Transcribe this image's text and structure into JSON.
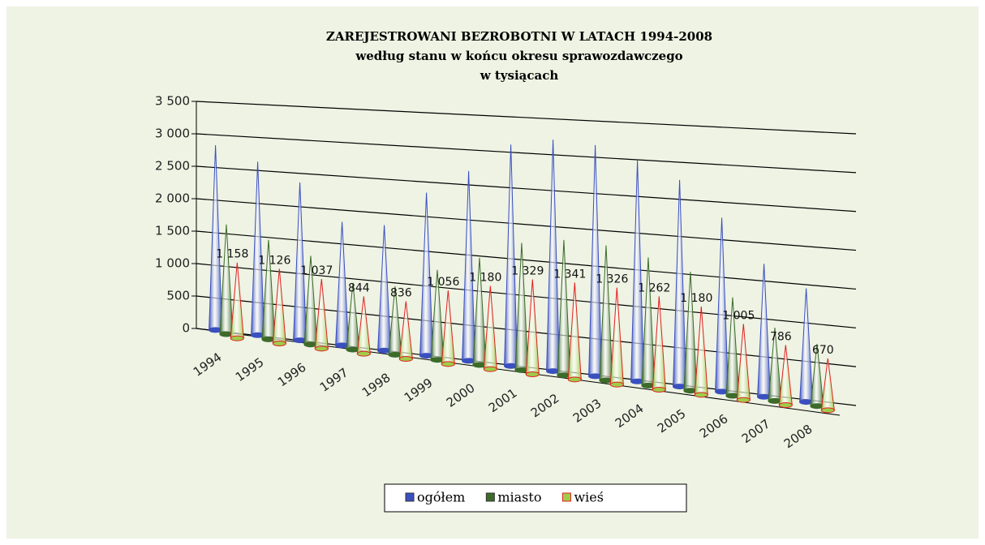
{
  "chart_data": {
    "type": "cone3d",
    "title": "ZAREJESTROWANI BEZROBOTNI W LATACH 1994-2008",
    "subtitle": [
      "według stanu w końcu okresu sprawozdawczego",
      "w tysiącach"
    ],
    "categories": [
      "1994",
      "1995",
      "1996",
      "1997",
      "1998",
      "1999",
      "2000",
      "2001",
      "2002",
      "2003",
      "2004",
      "2005",
      "2006",
      "2007",
      "2008"
    ],
    "series": [
      {
        "name": "ogółem",
        "color": "#3a4fc0",
        "values": [
          2838,
          2629,
          2360,
          1826,
          1831,
          2350,
          2702,
          3115,
          3217,
          3176,
          2999,
          2773,
          2309,
          1746,
          1474
        ]
      },
      {
        "name": "miasto",
        "color": "#3c6b2a",
        "values": [
          1680,
          1503,
          1323,
          982,
          995,
          1294,
          1522,
          1786,
          1876,
          1850,
          1737,
          1593,
          1304,
          960,
          804
        ]
      },
      {
        "name": "wieś",
        "color": "#9fcc4a",
        "stroke": "#e02020",
        "values": [
          1158,
          1126,
          1037,
          844,
          836,
          1056,
          1180,
          1329,
          1341,
          1326,
          1262,
          1180,
          1005,
          786,
          670
        ],
        "value_labels": [
          "1 158",
          "1 126",
          "1 037",
          "844",
          "836",
          "1 056",
          "1 180",
          "1 329",
          "1 341",
          "1 326",
          "1 262",
          "1 180",
          "1 005",
          "786",
          "670"
        ]
      }
    ],
    "ylim": [
      0,
      3500
    ],
    "yticks": [
      0,
      500,
      {
        "value": 1000,
        "label": "1 000"
      },
      {
        "value": 1500,
        "label": "1 500"
      },
      {
        "value": 2000,
        "label": "2 000"
      },
      {
        "value": 2500,
        "label": "2 500"
      },
      {
        "value": 3000,
        "label": "3 000"
      },
      {
        "value": 3500,
        "label": "3 500"
      }
    ],
    "grid": true,
    "legend": "bottom"
  }
}
